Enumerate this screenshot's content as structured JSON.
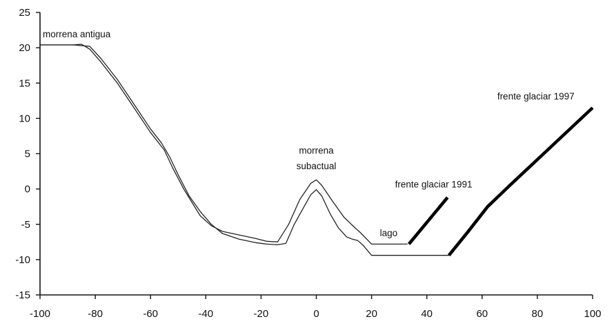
{
  "chart_data": {
    "type": "line",
    "title": "",
    "xlabel": "",
    "ylabel": "",
    "xlim": [
      -100,
      100
    ],
    "ylim": [
      -15,
      25
    ],
    "xticks": [
      -100,
      -80,
      -60,
      -40,
      -20,
      0,
      20,
      40,
      60,
      80,
      100
    ],
    "yticks": [
      -15,
      -10,
      -5,
      0,
      5,
      10,
      15,
      20,
      25
    ],
    "xtick_labels": [
      "-100",
      "-80",
      "-60",
      "-40",
      "-20",
      "0",
      "20",
      "40",
      "60",
      "80",
      "100"
    ],
    "ytick_labels": [
      "-15",
      "-10",
      "-5",
      "0",
      "5",
      "10",
      "15",
      "20",
      "25"
    ],
    "grid": false,
    "series": [
      {
        "style": "thin",
        "color": "#222222",
        "x": [
          -100,
          -88,
          -85,
          -82,
          -78,
          -72,
          -66,
          -60,
          -55,
          -52,
          -48,
          -42,
          -38,
          -34,
          -28,
          -22,
          -18,
          -14,
          -10,
          -6,
          -2,
          0,
          2,
          6,
          10,
          14,
          16,
          20,
          33
        ],
        "y": [
          20.4,
          20.4,
          20.5,
          19.8,
          18,
          15,
          11.5,
          8,
          5.5,
          3,
          0,
          -3.8,
          -5.2,
          -6,
          -6.5,
          -7,
          -7.4,
          -7.5,
          -5,
          -1.5,
          0.8,
          1.3,
          0.5,
          -1.8,
          -4,
          -5.5,
          -6.2,
          -7.8,
          -7.8
        ]
      },
      {
        "style": "thin",
        "color": "#222222",
        "x": [
          -100,
          -88,
          -82,
          -78,
          -72,
          -66,
          -60,
          -56,
          -53,
          -50,
          -46,
          -42,
          -38,
          -34,
          -28,
          -22,
          -18,
          -14,
          -11,
          -8,
          -4,
          -2,
          0,
          2,
          5,
          8,
          11,
          13,
          15,
          17,
          20,
          48
        ],
        "y": [
          20.4,
          20.4,
          20.2,
          18.5,
          15.5,
          12,
          8.5,
          6.5,
          4.5,
          2,
          -1,
          -3.2,
          -5,
          -6.3,
          -7.1,
          -7.6,
          -7.8,
          -7.9,
          -7.7,
          -5,
          -2.2,
          -0.8,
          -0.1,
          -1,
          -3.5,
          -5.5,
          -6.8,
          -7.1,
          -7.3,
          -8,
          -9.4,
          -9.4
        ]
      },
      {
        "style": "thick",
        "color": "#000000",
        "x": [
          33.5,
          47.5
        ],
        "y": [
          -7.8,
          -1.2
        ]
      },
      {
        "style": "thick",
        "color": "#000000",
        "x": [
          48,
          55,
          62,
          70,
          100
        ],
        "y": [
          -9.4,
          -6,
          -2.5,
          0.5,
          11.5
        ]
      }
    ],
    "annotations": [
      {
        "text": "morrena antigua",
        "x": -99,
        "y": 21.5,
        "anchor": "start"
      },
      {
        "text": "morrena",
        "x": 0,
        "y": 5,
        "anchor": "middle"
      },
      {
        "text": "subactual",
        "x": 0,
        "y": 2.8,
        "anchor": "middle"
      },
      {
        "text": "lago",
        "x": 23,
        "y": -6.7,
        "anchor": "start"
      },
      {
        "text": "frente glaciar 1991",
        "x": 28.5,
        "y": 0.2,
        "anchor": "start"
      },
      {
        "text": "frente glaciar 1997",
        "x": 65.5,
        "y": 12.7,
        "anchor": "start"
      }
    ]
  }
}
